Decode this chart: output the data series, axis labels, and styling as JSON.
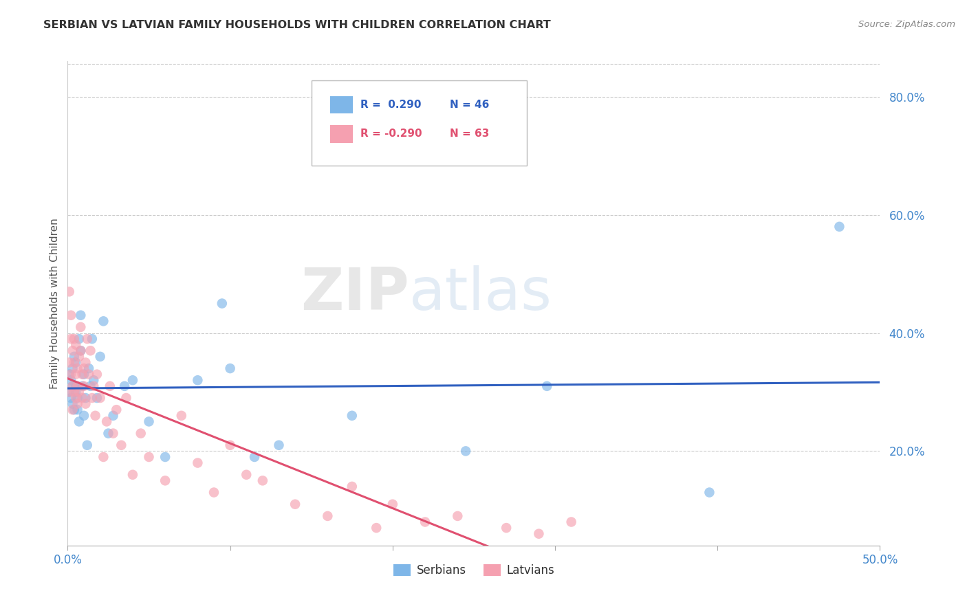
{
  "title": "SERBIAN VS LATVIAN FAMILY HOUSEHOLDS WITH CHILDREN CORRELATION CHART",
  "source": "Source: ZipAtlas.com",
  "ylabel": "Family Households with Children",
  "watermark_zip": "ZIP",
  "watermark_atlas": "atlas",
  "xmin": 0.0,
  "xmax": 0.5,
  "ymin": 0.04,
  "ymax": 0.86,
  "ytick_vals": [
    0.2,
    0.4,
    0.6,
    0.8
  ],
  "ytick_labels": [
    "20.0%",
    "40.0%",
    "60.0%",
    "80.0%"
  ],
  "xtick_vals": [
    0.0,
    0.1,
    0.2,
    0.3,
    0.4,
    0.5
  ],
  "xtick_labels": [
    "0.0%",
    "",
    "",
    "",
    "",
    "50.0%"
  ],
  "legend_serbian_r": "R =  0.290",
  "legend_serbian_n": "N = 46",
  "legend_latvian_r": "R = -0.290",
  "legend_latvian_n": "N = 63",
  "serbian_color": "#7EB6E8",
  "latvian_color": "#F5A0B0",
  "trend_serbian_color": "#3060C0",
  "trend_latvian_color": "#E05070",
  "axis_color": "#4488CC",
  "title_color": "#333333",
  "serbian_x": [
    0.001,
    0.001,
    0.002,
    0.002,
    0.003,
    0.003,
    0.003,
    0.004,
    0.004,
    0.005,
    0.005,
    0.005,
    0.006,
    0.006,
    0.007,
    0.007,
    0.008,
    0.008,
    0.009,
    0.01,
    0.01,
    0.011,
    0.012,
    0.013,
    0.014,
    0.015,
    0.016,
    0.018,
    0.02,
    0.022,
    0.025,
    0.028,
    0.035,
    0.04,
    0.05,
    0.06,
    0.08,
    0.095,
    0.1,
    0.115,
    0.13,
    0.175,
    0.245,
    0.295,
    0.395,
    0.475
  ],
  "serbian_y": [
    0.3,
    0.33,
    0.29,
    0.32,
    0.34,
    0.28,
    0.31,
    0.36,
    0.27,
    0.31,
    0.35,
    0.3,
    0.27,
    0.29,
    0.39,
    0.25,
    0.43,
    0.37,
    0.31,
    0.33,
    0.26,
    0.29,
    0.21,
    0.34,
    0.31,
    0.39,
    0.32,
    0.29,
    0.36,
    0.42,
    0.23,
    0.26,
    0.31,
    0.32,
    0.25,
    0.19,
    0.32,
    0.45,
    0.34,
    0.19,
    0.21,
    0.26,
    0.2,
    0.31,
    0.13,
    0.58
  ],
  "latvian_x": [
    0.001,
    0.001,
    0.001,
    0.002,
    0.002,
    0.002,
    0.003,
    0.003,
    0.003,
    0.004,
    0.004,
    0.004,
    0.005,
    0.005,
    0.005,
    0.006,
    0.006,
    0.006,
    0.007,
    0.007,
    0.008,
    0.008,
    0.009,
    0.009,
    0.01,
    0.01,
    0.011,
    0.011,
    0.012,
    0.013,
    0.014,
    0.015,
    0.016,
    0.017,
    0.018,
    0.02,
    0.022,
    0.024,
    0.026,
    0.028,
    0.03,
    0.033,
    0.036,
    0.04,
    0.045,
    0.05,
    0.06,
    0.07,
    0.08,
    0.09,
    0.1,
    0.11,
    0.12,
    0.14,
    0.16,
    0.175,
    0.19,
    0.2,
    0.22,
    0.24,
    0.27,
    0.29,
    0.31
  ],
  "latvian_y": [
    0.3,
    0.47,
    0.35,
    0.33,
    0.43,
    0.39,
    0.31,
    0.27,
    0.37,
    0.3,
    0.35,
    0.39,
    0.29,
    0.33,
    0.38,
    0.34,
    0.31,
    0.28,
    0.36,
    0.3,
    0.41,
    0.37,
    0.33,
    0.29,
    0.31,
    0.34,
    0.35,
    0.28,
    0.39,
    0.33,
    0.37,
    0.29,
    0.31,
    0.26,
    0.33,
    0.29,
    0.19,
    0.25,
    0.31,
    0.23,
    0.27,
    0.21,
    0.29,
    0.16,
    0.23,
    0.19,
    0.15,
    0.26,
    0.18,
    0.13,
    0.21,
    0.16,
    0.15,
    0.11,
    0.09,
    0.14,
    0.07,
    0.11,
    0.08,
    0.09,
    0.07,
    0.06,
    0.08
  ]
}
